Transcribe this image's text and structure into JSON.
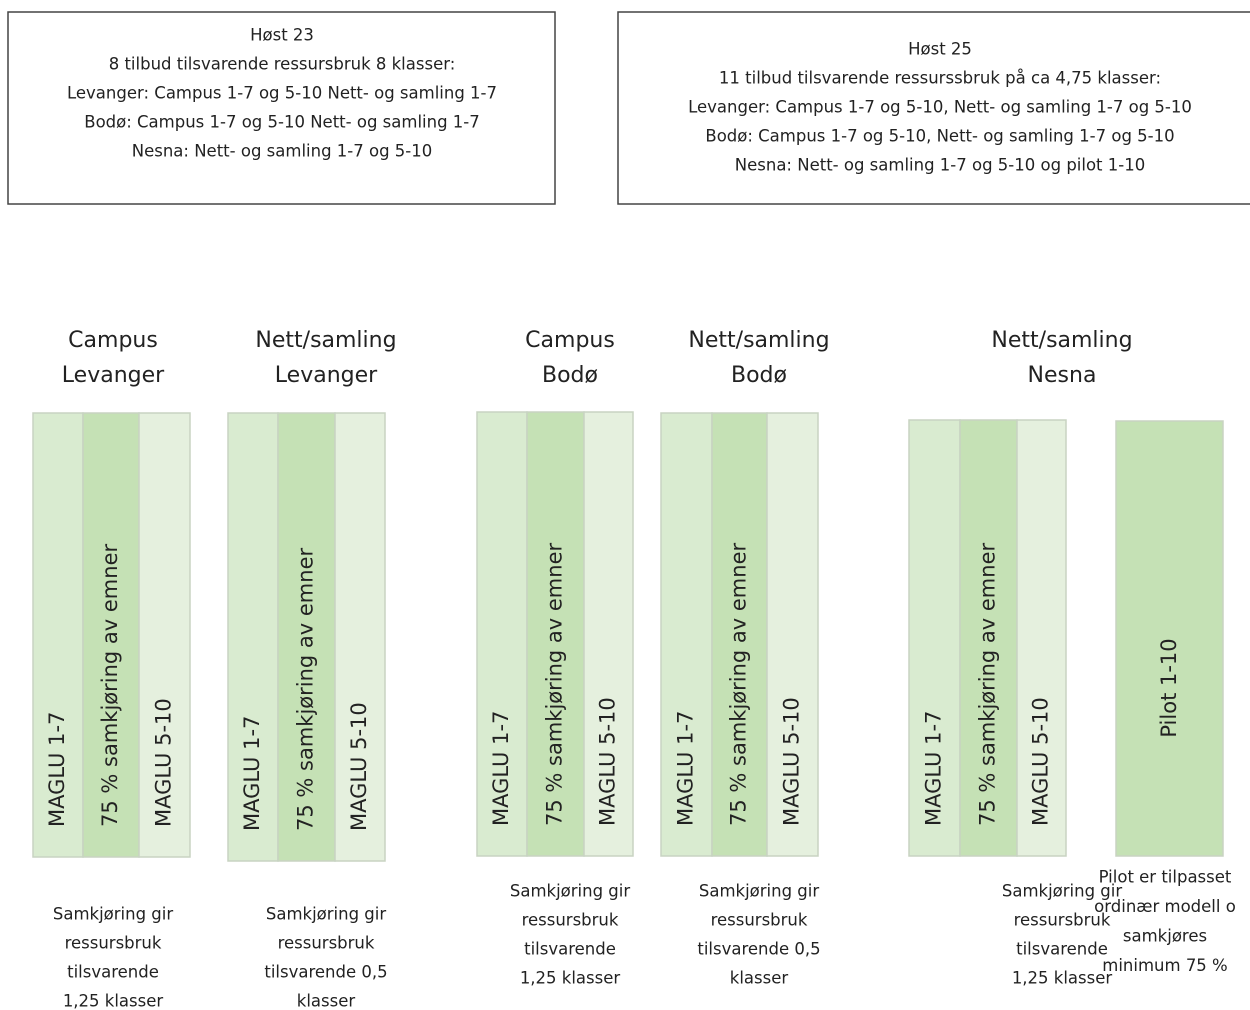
{
  "boxes": [
    {
      "lines": [
        "Høst 23",
        "8 tilbud tilsvarende ressursbruk 8 klasser:",
        "Levanger: Campus 1-7 og 5-10 Nett- og samling 1-7",
        "Bodø: Campus 1-7 og 5-10  Nett- og samling 1-7",
        "Nesna: Nett- og samling 1-7 og 5-10"
      ]
    },
    {
      "lines": [
        "Høst 25",
        "11 tilbud tilsvarende ressurssbruk på ca 4,75 klasser:",
        "Levanger: Campus 1-7 og 5-10, Nett- og samling 1-7 og 5-10",
        "Bodø: Campus 1-7 og 5-10, Nett- og samling 1-7 og 5-10",
        "Nesna: Nett- og samling 1-7 og 5-10 og pilot 1-10"
      ]
    }
  ],
  "groups": [
    {
      "title": [
        "Campus",
        "Levanger"
      ],
      "columns": [
        "MAGLU 1-7",
        "75 % samkjøring av emner",
        "MAGLU 5-10"
      ],
      "caption": [
        "Samkjøring gir",
        "ressursbruk",
        "tilsvarende",
        "1,25 klasser"
      ]
    },
    {
      "title": [
        "Nett/samling",
        "Levanger"
      ],
      "columns": [
        "MAGLU 1-7",
        "75 % samkjøring av emner",
        "MAGLU 5-10"
      ],
      "caption": [
        "Samkjøring gir",
        "ressursbruk",
        "tilsvarende 0,5",
        "klasser"
      ]
    },
    {
      "title": [
        "Campus",
        "Bodø"
      ],
      "columns": [
        "MAGLU 1-7",
        "75 % samkjøring av emner",
        "MAGLU 5-10"
      ],
      "caption": [
        "Samkjøring gir",
        "ressursbruk",
        "tilsvarende",
        "1,25 klasser"
      ]
    },
    {
      "title": [
        "Nett/samling",
        "Bodø"
      ],
      "columns": [
        "MAGLU 1-7",
        "75 % samkjøring av emner",
        "MAGLU 5-10"
      ],
      "caption": [
        "Samkjøring gir",
        "ressursbruk",
        "tilsvarende 0,5",
        "klasser"
      ]
    },
    {
      "title": [
        "Nett/samling",
        "Nesna"
      ],
      "columns": [
        "MAGLU 1-7",
        "75 % samkjøring av emner",
        "MAGLU 5-10"
      ],
      "caption": [
        "Samkjøring gir",
        "ressursbruk",
        "tilsvarende",
        "1,25 klasser"
      ]
    }
  ],
  "pilot": {
    "label": "Pilot 1-10",
    "caption": [
      "Pilot er tilpasset",
      "ordinær modell o",
      "samkjøres",
      "minimum 75 %"
    ]
  }
}
